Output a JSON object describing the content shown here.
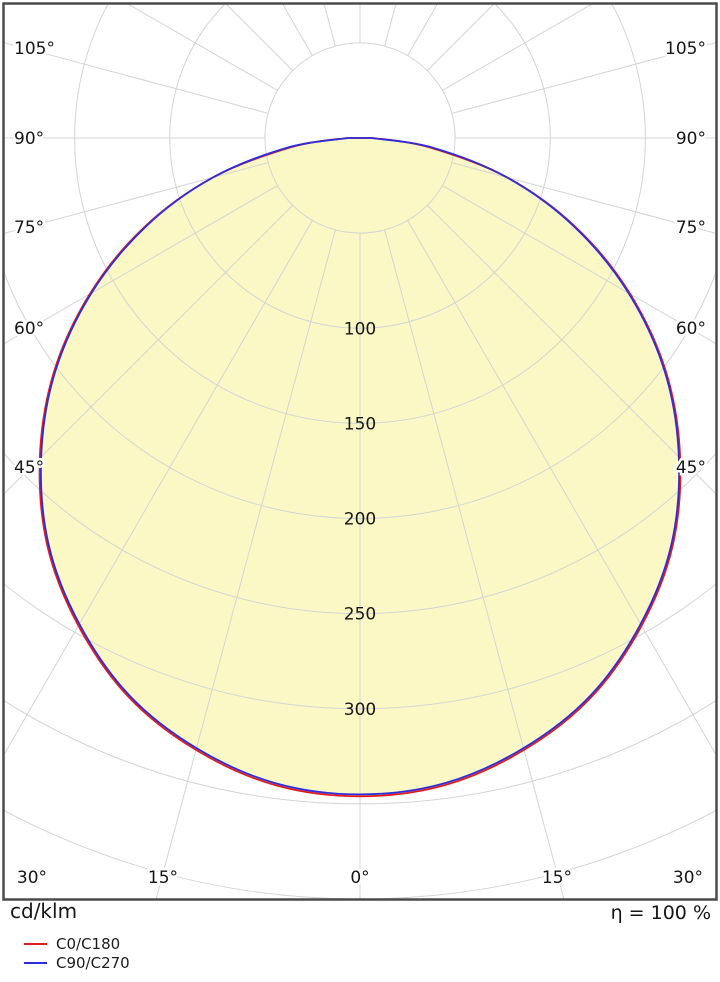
{
  "chart_data": {
    "type": "polar_intensity_distribution",
    "unit": "cd/klm",
    "efficiency": "η = 100 %",
    "gamma_deg": [
      0,
      7.5,
      15,
      22.5,
      30,
      37.5,
      45,
      52.5,
      60,
      67.5,
      75,
      82.5,
      90
    ],
    "series": [
      {
        "name": "C0/C180",
        "color": "#e31b1b",
        "values": [
          346,
          343,
          333,
          318,
          296,
          270,
          238,
          203,
          164,
          123,
          80,
          36,
          7
        ]
      },
      {
        "name": "C90/C270",
        "color": "#2d2ddd",
        "values": [
          345,
          342,
          332,
          317,
          295,
          269,
          237,
          202,
          163,
          122,
          80,
          38,
          6
        ]
      }
    ],
    "ring_step_cd": 50,
    "ring_value_labels": [
      "100",
      "150",
      "200",
      "250",
      "300"
    ],
    "ray_step_deg": 15,
    "angle_labels_left": [
      "105°",
      "90°",
      "75°",
      "60°",
      "45°"
    ],
    "angle_labels_right": [
      "105°",
      "90°",
      "75°",
      "60°",
      "45°"
    ],
    "angle_labels_bottom": [
      "30°",
      "15°",
      "0°",
      "15°",
      "30°"
    ],
    "fill_color": "#fbf8c5",
    "grid_color": "#d4d4d4",
    "border_color": "#4b4b4b",
    "legend_position": "bottom-left",
    "grid": true
  },
  "footer": {
    "unit": "cd/klm",
    "efficiency": "η = 100 %"
  },
  "legend": {
    "items": [
      {
        "label": "C0/C180",
        "color": "#e31b1b"
      },
      {
        "label": "C90/C270",
        "color": "#2d2ddd"
      }
    ]
  }
}
